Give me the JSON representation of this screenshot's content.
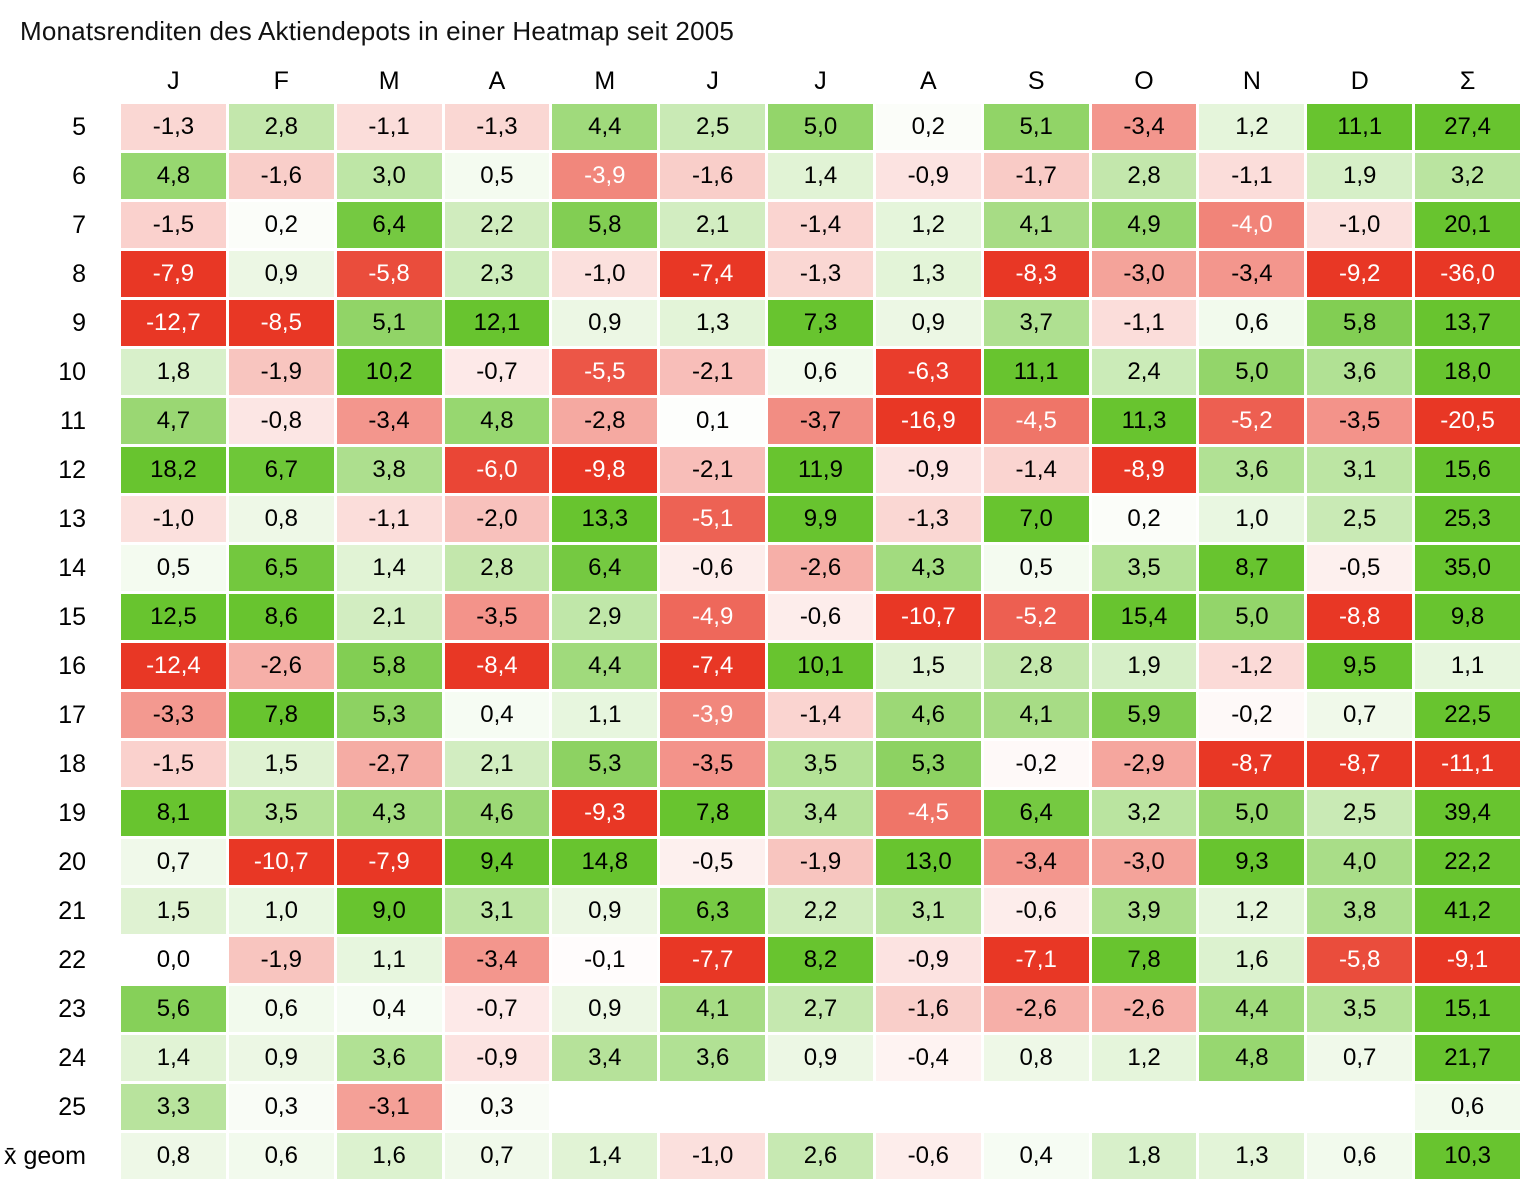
{
  "title": "Monatsrenditen des Aktiendepots in einer Heatmap seit 2005",
  "chart_data": {
    "type": "heatmap",
    "title": "Monatsrenditen des Aktiendepots in einer Heatmap seit 2005",
    "columns": [
      "J",
      "F",
      "M",
      "A",
      "M",
      "J",
      "J",
      "A",
      "S",
      "O",
      "N",
      "D",
      "Σ"
    ],
    "rows": [
      "5",
      "6",
      "7",
      "8",
      "9",
      "10",
      "11",
      "12",
      "13",
      "14",
      "15",
      "16",
      "17",
      "18",
      "19",
      "20",
      "21",
      "22",
      "23",
      "24",
      "25",
      "x̄ geom"
    ],
    "values": [
      [
        "-1,3",
        "2,8",
        "-1,1",
        "-1,3",
        "4,4",
        "2,5",
        "5,0",
        "0,2",
        "5,1",
        "-3,4",
        "1,2",
        "11,1",
        "27,4"
      ],
      [
        "4,8",
        "-1,6",
        "3,0",
        "0,5",
        "-3,9",
        "-1,6",
        "1,4",
        "-0,9",
        "-1,7",
        "2,8",
        "-1,1",
        "1,9",
        "3,2"
      ],
      [
        "-1,5",
        "0,2",
        "6,4",
        "2,2",
        "5,8",
        "2,1",
        "-1,4",
        "1,2",
        "4,1",
        "4,9",
        "-4,0",
        "-1,0",
        "20,1"
      ],
      [
        "-7,9",
        "0,9",
        "-5,8",
        "2,3",
        "-1,0",
        "-7,4",
        "-1,3",
        "1,3",
        "-8,3",
        "-3,0",
        "-3,4",
        "-9,2",
        "-36,0"
      ],
      [
        "-12,7",
        "-8,5",
        "5,1",
        "12,1",
        "0,9",
        "1,3",
        "7,3",
        "0,9",
        "3,7",
        "-1,1",
        "0,6",
        "5,8",
        "13,7"
      ],
      [
        "1,8",
        "-1,9",
        "10,2",
        "-0,7",
        "-5,5",
        "-2,1",
        "0,6",
        "-6,3",
        "11,1",
        "2,4",
        "5,0",
        "3,6",
        "18,0"
      ],
      [
        "4,7",
        "-0,8",
        "-3,4",
        "4,8",
        "-2,8",
        "0,1",
        "-3,7",
        "-16,9",
        "-4,5",
        "11,3",
        "-5,2",
        "-3,5",
        "-20,5"
      ],
      [
        "18,2",
        "6,7",
        "3,8",
        "-6,0",
        "-9,8",
        "-2,1",
        "11,9",
        "-0,9",
        "-1,4",
        "-8,9",
        "3,6",
        "3,1",
        "15,6"
      ],
      [
        "-1,0",
        "0,8",
        "-1,1",
        "-2,0",
        "13,3",
        "-5,1",
        "9,9",
        "-1,3",
        "7,0",
        "0,2",
        "1,0",
        "2,5",
        "25,3"
      ],
      [
        "0,5",
        "6,5",
        "1,4",
        "2,8",
        "6,4",
        "-0,6",
        "-2,6",
        "4,3",
        "0,5",
        "3,5",
        "8,7",
        "-0,5",
        "35,0"
      ],
      [
        "12,5",
        "8,6",
        "2,1",
        "-3,5",
        "2,9",
        "-4,9",
        "-0,6",
        "-10,7",
        "-5,2",
        "15,4",
        "5,0",
        "-8,8",
        "9,8"
      ],
      [
        "-12,4",
        "-2,6",
        "5,8",
        "-8,4",
        "4,4",
        "-7,4",
        "10,1",
        "1,5",
        "2,8",
        "1,9",
        "-1,2",
        "9,5",
        "1,1"
      ],
      [
        "-3,3",
        "7,8",
        "5,3",
        "0,4",
        "1,1",
        "-3,9",
        "-1,4",
        "4,6",
        "4,1",
        "5,9",
        "-0,2",
        "0,7",
        "22,5"
      ],
      [
        "-1,5",
        "1,5",
        "-2,7",
        "2,1",
        "5,3",
        "-3,5",
        "3,5",
        "5,3",
        "-0,2",
        "-2,9",
        "-8,7",
        "-8,7",
        "-11,1"
      ],
      [
        "8,1",
        "3,5",
        "4,3",
        "4,6",
        "-9,3",
        "7,8",
        "3,4",
        "-4,5",
        "6,4",
        "3,2",
        "5,0",
        "2,5",
        "39,4"
      ],
      [
        "0,7",
        "-10,7",
        "-7,9",
        "9,4",
        "14,8",
        "-0,5",
        "-1,9",
        "13,0",
        "-3,4",
        "-3,0",
        "9,3",
        "4,0",
        "22,2"
      ],
      [
        "1,5",
        "1,0",
        "9,0",
        "3,1",
        "0,9",
        "6,3",
        "2,2",
        "3,1",
        "-0,6",
        "3,9",
        "1,2",
        "3,8",
        "41,2"
      ],
      [
        "0,0",
        "-1,9",
        "1,1",
        "-3,4",
        "-0,1",
        "-7,7",
        "8,2",
        "-0,9",
        "-7,1",
        "7,8",
        "1,6",
        "-5,8",
        "-9,1"
      ],
      [
        "5,6",
        "0,6",
        "0,4",
        "-0,7",
        "0,9",
        "4,1",
        "2,7",
        "-1,6",
        "-2,6",
        "-2,6",
        "4,4",
        "3,5",
        "15,1"
      ],
      [
        "1,4",
        "0,9",
        "3,6",
        "-0,9",
        "3,4",
        "3,6",
        "0,9",
        "-0,4",
        "0,8",
        "1,2",
        "4,8",
        "0,7",
        "21,7"
      ],
      [
        "3,3",
        "0,3",
        "-3,1",
        "0,3",
        null,
        null,
        null,
        null,
        null,
        null,
        null,
        null,
        "0,6"
      ],
      [
        "0,8",
        "0,6",
        "1,6",
        "0,7",
        "1,4",
        "-1,0",
        "2,6",
        "-0,6",
        "0,4",
        "1,8",
        "1,3",
        "0,6",
        "10,3"
      ]
    ],
    "colors": {
      "positive_max": "#68c42f",
      "negative_max": "#e83725",
      "neutral": "#ffffff",
      "text_default": "#000000",
      "text_on_strong_negative": "#ffffff"
    },
    "scale": {
      "green_full_at": 7.0,
      "red_full_at": 6.5,
      "white_text_below": -3.8
    },
    "legend_position": "none",
    "grid": false
  }
}
